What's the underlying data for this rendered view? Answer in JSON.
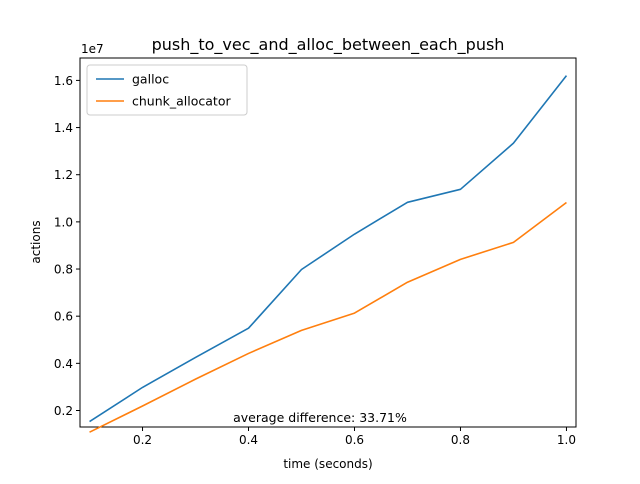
{
  "chart_data": {
    "type": "line",
    "title": "push_to_vec_and_alloc_between_each_push",
    "xlabel": "time (seconds)",
    "ylabel": "actions",
    "y_offset_label": "1e7",
    "y_scale": 10000000,
    "xlim": [
      0.082,
      1.018
    ],
    "ylim": [
      1.3,
      16.95
    ],
    "x_ticks": [
      0.2,
      0.4,
      0.6,
      0.8,
      1.0
    ],
    "x_tick_labels": [
      "0.2",
      "0.4",
      "0.6",
      "0.8",
      "1.0"
    ],
    "y_ticks": [
      2,
      4,
      6,
      8,
      10,
      12,
      14,
      16
    ],
    "y_tick_labels": [
      "0.2",
      "0.4",
      "0.6",
      "0.8",
      "1.0",
      "1.2",
      "1.4",
      "1.6"
    ],
    "grid": false,
    "legend_position": "top-left",
    "x": [
      0.1,
      0.2,
      0.3,
      0.4,
      0.5,
      0.6,
      0.7,
      0.8,
      0.9,
      1.0
    ],
    "series": [
      {
        "name": "galloc",
        "color": "#1f77b4",
        "values": [
          1.53,
          2.98,
          4.25,
          5.49,
          7.98,
          9.48,
          10.83,
          11.38,
          13.34,
          16.2
        ]
      },
      {
        "name": "chunk_allocator",
        "color": "#ff7f0e",
        "values": [
          1.08,
          2.19,
          3.33,
          4.42,
          5.4,
          6.13,
          7.44,
          8.41,
          9.13,
          10.82
        ]
      }
    ],
    "annotation": "average difference: 33.71%"
  }
}
